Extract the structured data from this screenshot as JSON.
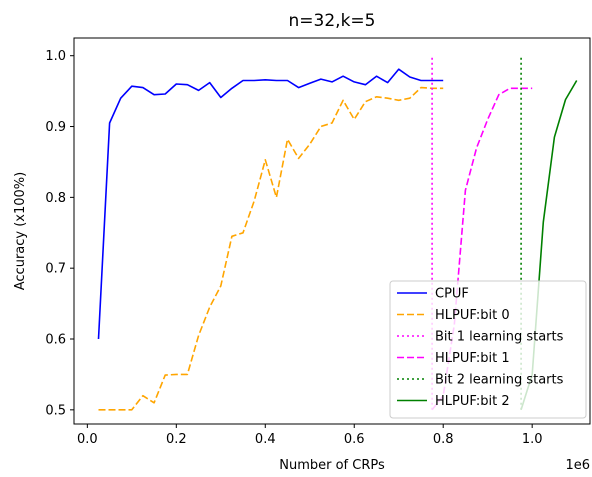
{
  "chart_data": {
    "type": "line",
    "title": "n=32,k=5",
    "xlabel": "Number of CRPs",
    "ylabel": "Accuracy (x100%)",
    "x_offset_label": "1e6",
    "xlim": [
      -0.03,
      1.13
    ],
    "ylim": [
      0.48,
      1.025
    ],
    "xticks": [
      0.0,
      0.2,
      0.4,
      0.6,
      0.8,
      1.0
    ],
    "xtick_labels": [
      "0.0",
      "0.2",
      "0.4",
      "0.6",
      "0.8",
      "1.0"
    ],
    "yticks": [
      0.5,
      0.6,
      0.7,
      0.8,
      0.9,
      1.0
    ],
    "ytick_labels": [
      "0.5",
      "0.6",
      "0.7",
      "0.8",
      "0.9",
      "1.0"
    ],
    "grid": false,
    "legend_position": "lower-right",
    "series": [
      {
        "name": "CPUF",
        "style": "solid",
        "color": "#0000ff",
        "x": [
          0.025,
          0.05,
          0.075,
          0.1,
          0.125,
          0.15,
          0.175,
          0.2,
          0.225,
          0.25,
          0.275,
          0.3,
          0.325,
          0.35,
          0.375,
          0.4,
          0.425,
          0.45,
          0.475,
          0.5,
          0.525,
          0.55,
          0.575,
          0.6,
          0.625,
          0.65,
          0.675,
          0.7,
          0.725,
          0.75,
          0.775,
          0.8
        ],
        "y": [
          0.6,
          0.905,
          0.94,
          0.957,
          0.955,
          0.945,
          0.946,
          0.96,
          0.959,
          0.951,
          0.962,
          0.941,
          0.954,
          0.965,
          0.965,
          0.966,
          0.965,
          0.965,
          0.955,
          0.961,
          0.967,
          0.963,
          0.971,
          0.963,
          0.959,
          0.971,
          0.962,
          0.981,
          0.97,
          0.965,
          0.965,
          0.965
        ]
      },
      {
        "name": "HLPUF:bit 0",
        "style": "dashed",
        "color": "#ffa500",
        "x": [
          0.025,
          0.05,
          0.075,
          0.1,
          0.125,
          0.15,
          0.175,
          0.2,
          0.225,
          0.25,
          0.275,
          0.3,
          0.325,
          0.35,
          0.375,
          0.4,
          0.425,
          0.45,
          0.475,
          0.5,
          0.525,
          0.55,
          0.575,
          0.6,
          0.625,
          0.65,
          0.675,
          0.7,
          0.725,
          0.75,
          0.775,
          0.8
        ],
        "y": [
          0.5,
          0.5,
          0.5,
          0.5,
          0.52,
          0.51,
          0.549,
          0.55,
          0.55,
          0.605,
          0.645,
          0.675,
          0.745,
          0.75,
          0.795,
          0.853,
          0.8,
          0.882,
          0.855,
          0.875,
          0.9,
          0.905,
          0.937,
          0.91,
          0.935,
          0.942,
          0.94,
          0.937,
          0.94,
          0.955,
          0.954,
          0.954
        ]
      },
      {
        "name": "Bit 1 learning starts",
        "style": "dotted",
        "color": "#ff00ff",
        "x": [
          0.775,
          0.775
        ],
        "y": [
          0.5,
          1.0
        ]
      },
      {
        "name": "HLPUF:bit 1",
        "style": "dashed",
        "color": "#ff00ff",
        "x": [
          0.775,
          0.8,
          0.825,
          0.85,
          0.875,
          0.9,
          0.925,
          0.95,
          0.975,
          1.0
        ],
        "y": [
          0.5,
          0.52,
          0.62,
          0.81,
          0.87,
          0.91,
          0.945,
          0.954,
          0.954,
          0.954
        ]
      },
      {
        "name": "Bit 2 learning starts",
        "style": "dotted",
        "color": "#008000",
        "x": [
          0.975,
          0.975
        ],
        "y": [
          0.5,
          1.0
        ]
      },
      {
        "name": "HLPUF:bit 2",
        "style": "solid",
        "color": "#008000",
        "x": [
          0.975,
          1.0,
          1.025,
          1.05,
          1.075,
          1.1
        ],
        "y": [
          0.5,
          0.55,
          0.765,
          0.885,
          0.938,
          0.965
        ]
      }
    ]
  }
}
